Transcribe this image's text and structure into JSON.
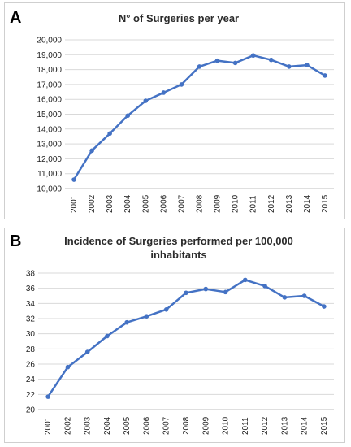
{
  "colors": {
    "series": "#4472C4"
  },
  "chart_data": [
    {
      "type": "line",
      "panel_label": "A",
      "title": "N° of Surgeries per year",
      "title_lines": [
        "N° of Surgeries per year"
      ],
      "x": [
        "2001",
        "2002",
        "2003",
        "2004",
        "2005",
        "2006",
        "2007",
        "2008",
        "2009",
        "2010",
        "2011",
        "2012",
        "2013",
        "2014",
        "2015"
      ],
      "y": [
        10600,
        12550,
        13700,
        14900,
        15900,
        16450,
        17000,
        18200,
        18600,
        18450,
        18950,
        18650,
        18200,
        18300,
        17600
      ],
      "yticks": [
        "10,000",
        "11,000",
        "12,000",
        "13,000",
        "14,000",
        "15,000",
        "16,000",
        "17,000",
        "18,000",
        "19,000",
        "20,000"
      ],
      "ylim": [
        10000,
        20000
      ],
      "grid": true
    },
    {
      "type": "line",
      "panel_label": "B",
      "title": "Incidence of Surgeries performed per 100,000 inhabitants",
      "title_lines": [
        "Incidence of Surgeries performed per 100,000",
        "inhabitants"
      ],
      "x": [
        "2001",
        "2002",
        "2003",
        "2004",
        "2005",
        "2006",
        "2007",
        "2008",
        "2009",
        "2010",
        "2011",
        "2012",
        "2013",
        "2014",
        "2015"
      ],
      "y": [
        21.7,
        25.6,
        27.6,
        29.7,
        31.5,
        32.3,
        33.2,
        35.4,
        35.9,
        35.5,
        37.1,
        36.3,
        34.8,
        35.0,
        33.6
      ],
      "yticks": [
        "20",
        "22",
        "24",
        "26",
        "28",
        "30",
        "32",
        "34",
        "36",
        "38"
      ],
      "ylim": [
        20,
        38
      ],
      "grid": true
    }
  ]
}
